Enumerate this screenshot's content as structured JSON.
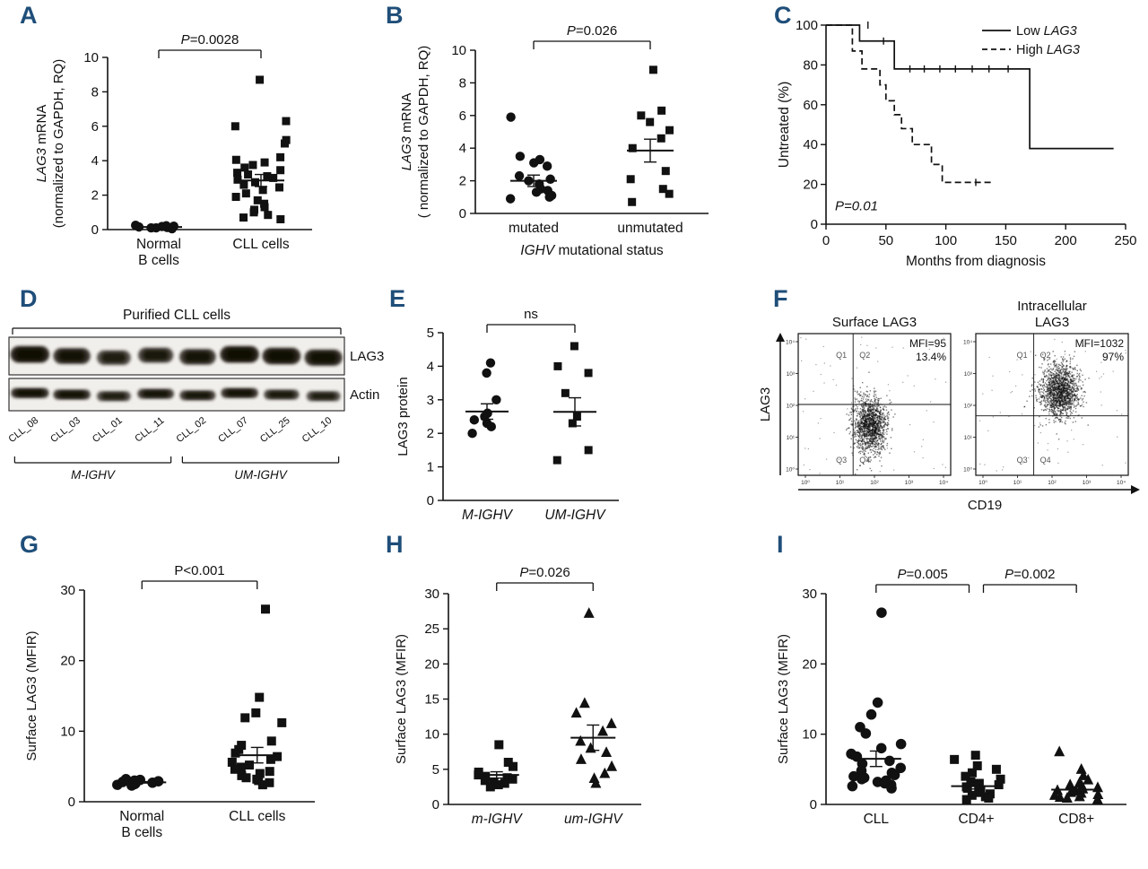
{
  "figure": {
    "label_color": "#1F4E79",
    "background": "#FFFFFF",
    "marker_color": "#111111"
  },
  "chart_data": [
    {
      "id": "A",
      "type": "scatter",
      "ylabel": [
        "*LAG3* mRNA",
        "(normalized to GAPDH, RQ)"
      ],
      "ylim": [
        0,
        10
      ],
      "yticks": [
        0,
        2,
        4,
        6,
        8,
        10
      ],
      "groups": [
        {
          "label": [
            "Normal",
            "B cells"
          ],
          "marker": "circle",
          "values": [
            0.05,
            0.1,
            0.12,
            0.15,
            0.18,
            0.2,
            0.22,
            0.25,
            0.1
          ],
          "mean": 0.15,
          "sem": 0.04
        },
        {
          "label": [
            "CLL cells"
          ],
          "marker": "square",
          "values": [
            8.7,
            6.3,
            6.0,
            5.2,
            5.0,
            4.2,
            4.05,
            3.9,
            3.75,
            3.6,
            3.45,
            3.3,
            3.2,
            3.1,
            3.0,
            2.9,
            2.75,
            2.6,
            2.45,
            2.3,
            2.1,
            1.9,
            1.7,
            1.5,
            1.3,
            1.15,
            1.0,
            0.85,
            0.7,
            0.6
          ],
          "mean": 2.85,
          "sem": 0.35
        }
      ],
      "brackets": [
        {
          "from": 0,
          "to": 1,
          "text": "*P*=0.0028"
        }
      ]
    },
    {
      "id": "B",
      "type": "scatter",
      "ylabel": [
        "*LAG3* mRNA",
        "( normalized to GAPDH, RQ)"
      ],
      "xlabel": "*IGHV* mutational status",
      "ylim": [
        0,
        10
      ],
      "yticks": [
        0,
        2,
        4,
        6,
        8,
        10
      ],
      "groups": [
        {
          "label": [
            "mutated"
          ],
          "marker": "circle",
          "values": [
            5.9,
            3.5,
            3.3,
            3.1,
            2.9,
            2.3,
            2.1,
            2.0,
            1.8,
            1.5,
            1.4,
            1.3,
            1.1,
            1.0,
            0.9
          ],
          "mean": 2.0,
          "sem": 0.35
        },
        {
          "label": [
            "unmutated"
          ],
          "marker": "square",
          "values": [
            8.8,
            6.3,
            6.0,
            5.6,
            5.1,
            4.6,
            4.0,
            2.6,
            2.1,
            1.5,
            1.2,
            0.7
          ],
          "mean": 3.85,
          "sem": 0.7
        }
      ],
      "brackets": [
        {
          "from": 0,
          "to": 1,
          "text": "*P*=0.026"
        }
      ]
    },
    {
      "id": "C",
      "type": "km",
      "ylabel": "Untreated (%)",
      "xlabel": "Months from diagnosis",
      "ylim": [
        0,
        100
      ],
      "yticks": [
        0,
        20,
        40,
        60,
        80,
        100
      ],
      "xlim": [
        0,
        250
      ],
      "xticks": [
        0,
        50,
        100,
        150,
        200,
        250
      ],
      "annotation": "*P=0.01*",
      "series": [
        {
          "name": "Low *LAG3*",
          "style": "solid",
          "points": [
            [
              0,
              100
            ],
            [
              28,
              100
            ],
            [
              28,
              92
            ],
            [
              57,
              92
            ],
            [
              57,
              78
            ],
            [
              170,
              78
            ],
            [
              170,
              38
            ],
            [
              240,
              38
            ]
          ],
          "censors": [
            [
              35,
              100
            ],
            [
              48,
              92
            ],
            [
              70,
              78
            ],
            [
              82,
              78
            ],
            [
              95,
              78
            ],
            [
              108,
              78
            ],
            [
              122,
              78
            ],
            [
              136,
              78
            ],
            [
              152,
              78
            ]
          ]
        },
        {
          "name": "High *LAG3*",
          "style": "dashed",
          "points": [
            [
              0,
              100
            ],
            [
              22,
              100
            ],
            [
              22,
              87
            ],
            [
              30,
              87
            ],
            [
              30,
              78
            ],
            [
              45,
              78
            ],
            [
              45,
              70
            ],
            [
              50,
              70
            ],
            [
              50,
              62
            ],
            [
              57,
              62
            ],
            [
              57,
              55
            ],
            [
              63,
              55
            ],
            [
              63,
              48
            ],
            [
              72,
              48
            ],
            [
              72,
              40
            ],
            [
              88,
              40
            ],
            [
              88,
              30
            ],
            [
              97,
              30
            ],
            [
              97,
              21
            ],
            [
              140,
              21
            ]
          ],
          "censors": [
            [
              125,
              21
            ]
          ]
        }
      ]
    },
    {
      "id": "D",
      "type": "blot",
      "title": "Purified CLL cells",
      "rows": [
        "LAG3",
        "Actin"
      ],
      "lanes": [
        "CLL_08",
        "CLL_03",
        "CLL_01",
        "CLL_11",
        "CLL_02",
        "CLL_07",
        "CLL_25",
        "CLL_10"
      ],
      "band_intensities": [
        [
          0.95,
          0.8,
          0.55,
          0.65,
          0.75,
          0.95,
          0.9,
          0.85
        ],
        [
          0.85,
          0.8,
          0.55,
          0.75,
          0.7,
          0.8,
          0.65,
          0.55
        ]
      ],
      "groups": [
        {
          "label": "*M-IGHV*",
          "from": 0,
          "to": 3
        },
        {
          "label": "*UM-IGHV*",
          "from": 4,
          "to": 7
        }
      ]
    },
    {
      "id": "E",
      "type": "scatter",
      "ylabel": [
        "LAG3 protein"
      ],
      "ylim": [
        0,
        5
      ],
      "yticks": [
        0,
        1,
        2,
        3,
        4,
        5
      ],
      "groups": [
        {
          "label": [
            "*M-IGHV*"
          ],
          "marker": "circle",
          "values": [
            4.1,
            3.8,
            3.0,
            2.6,
            2.5,
            2.4,
            2.3,
            2.2,
            2.0
          ],
          "mean": 2.65,
          "sem": 0.23
        },
        {
          "label": [
            "*UM-IGHV*"
          ],
          "marker": "square",
          "values": [
            4.6,
            4.0,
            3.8,
            3.2,
            2.5,
            2.3,
            1.5,
            1.2
          ],
          "mean": 2.64,
          "sem": 0.42
        }
      ],
      "brackets": [
        {
          "from": 0,
          "to": 1,
          "text": "ns"
        }
      ]
    },
    {
      "id": "F",
      "type": "flow",
      "ylabel": "LAG3",
      "xlabel": "CD19",
      "log_ticks": [
        "10⁰",
        "10¹",
        "10²",
        "10³",
        "10⁴"
      ],
      "plots": [
        {
          "title": [
            "Surface LAG3"
          ],
          "stats": [
            "MFI=95",
            "13.4%"
          ],
          "quadrants": [
            {
              "label": "Q1",
              "pos": "tl"
            },
            {
              "label": "Q2",
              "pos": "tr"
            },
            {
              "label": "Q3",
              "pos": "bl"
            },
            {
              "label": "Q4",
              "pos": "br"
            }
          ],
          "qx": 0.36,
          "qy": 0.5,
          "cluster": {
            "cx": 0.47,
            "cy": 0.64,
            "sx": 0.055,
            "sy": 0.1,
            "n": 1400
          }
        },
        {
          "title": [
            "Intracellular",
            "LAG3"
          ],
          "stats": [
            "MFI=1032",
            "97%"
          ],
          "quadrants": [
            {
              "label": "Q1",
              "pos": "tl"
            },
            {
              "label": "Q2",
              "pos": "tr"
            },
            {
              "label": "Q3",
              "pos": "bl"
            },
            {
              "label": "Q4",
              "pos": "br"
            }
          ],
          "qx": 0.38,
          "qy": 0.58,
          "cluster": {
            "cx": 0.55,
            "cy": 0.4,
            "sx": 0.065,
            "sy": 0.095,
            "n": 1500
          }
        }
      ]
    },
    {
      "id": "G",
      "type": "scatter",
      "ylabel": [
        "Surface LAG3 (MFIR)"
      ],
      "ylim": [
        0,
        30
      ],
      "yticks": [
        0,
        10,
        20,
        30
      ],
      "groups": [
        {
          "label": [
            "Normal",
            "B cells"
          ],
          "marker": "circle",
          "values": [
            2.3,
            2.4,
            2.5,
            2.6,
            2.7,
            2.8,
            2.9,
            3.0,
            3.1,
            3.2
          ],
          "mean": 2.75,
          "sem": 0.1
        },
        {
          "label": [
            "CLL cells"
          ],
          "marker": "square",
          "values": [
            27.3,
            14.8,
            12.6,
            11.9,
            11.2,
            8.6,
            8.0,
            7.4,
            6.9,
            6.4,
            6.0,
            5.6,
            5.2,
            4.9,
            4.6,
            4.3,
            4.0,
            3.7,
            3.4,
            3.2,
            3.0,
            2.7,
            2.4
          ],
          "mean": 6.6,
          "sem": 1.1
        }
      ],
      "brackets": [
        {
          "from": 0,
          "to": 1,
          "text": "P<0.001"
        }
      ]
    },
    {
      "id": "H",
      "type": "scatter",
      "ylabel": [
        "Surface LAG3 (MFIR)"
      ],
      "ylim": [
        0,
        30
      ],
      "yticks": [
        0,
        5,
        10,
        15,
        20,
        25,
        30
      ],
      "groups": [
        {
          "label": [
            "*m-IGHV*"
          ],
          "marker": "square",
          "values": [
            8.5,
            6.0,
            5.4,
            4.6,
            4.2,
            4.0,
            3.8,
            3.6,
            3.4,
            3.2,
            3.0,
            2.8,
            2.5
          ],
          "mean": 4.2,
          "sem": 0.45
        },
        {
          "label": [
            "*um-IGHV*"
          ],
          "marker": "triangle",
          "values": [
            27.2,
            14.4,
            13.0,
            11.5,
            10.4,
            9.0,
            8.0,
            7.4,
            6.4,
            5.4,
            4.4,
            3.7,
            3.0
          ],
          "mean": 9.5,
          "sem": 1.8
        }
      ],
      "brackets": [
        {
          "from": 0,
          "to": 1,
          "text": "*P*=0.026"
        }
      ]
    },
    {
      "id": "I",
      "type": "scatter",
      "ylabel": [
        "Surface LAG3 (MFIR)"
      ],
      "ylim": [
        0,
        30
      ],
      "yticks": [
        0,
        10,
        20,
        30
      ],
      "groups": [
        {
          "label": [
            "CLL"
          ],
          "marker": "circle",
          "values": [
            27.3,
            14.5,
            12.8,
            11.0,
            10.1,
            8.6,
            8.0,
            7.2,
            6.8,
            6.2,
            5.8,
            5.2,
            4.8,
            4.5,
            4.2,
            4.0,
            3.8,
            3.6,
            3.4,
            3.2,
            3.0,
            2.8,
            2.6,
            2.3
          ],
          "mean": 6.5,
          "sem": 1.1
        },
        {
          "label": [
            "CD4+"
          ],
          "marker": "square",
          "values": [
            7.0,
            6.4,
            5.5,
            5.0,
            4.5,
            4.0,
            3.6,
            3.2,
            3.0,
            2.8,
            2.5,
            2.3,
            2.1,
            1.9,
            1.7,
            1.5,
            1.3,
            1.1,
            0.9,
            0.7
          ],
          "mean": 2.6,
          "sem": 0.4
        },
        {
          "label": [
            "CD8+"
          ],
          "marker": "triangle",
          "values": [
            7.5,
            5.0,
            4.1,
            3.5,
            3.1,
            2.8,
            2.6,
            2.4,
            2.2,
            2.0,
            1.9,
            1.7,
            1.6,
            1.4,
            1.3,
            1.1,
            1.0,
            0.9,
            0.7
          ],
          "mean": 2.1,
          "sem": 0.35
        }
      ],
      "brackets": [
        {
          "from": 0,
          "to": 1,
          "text": "*P*=0.005",
          "x2off": -8
        },
        {
          "from": 1,
          "to": 2,
          "text": "*P*=0.002",
          "x1off": 8
        }
      ]
    }
  ]
}
